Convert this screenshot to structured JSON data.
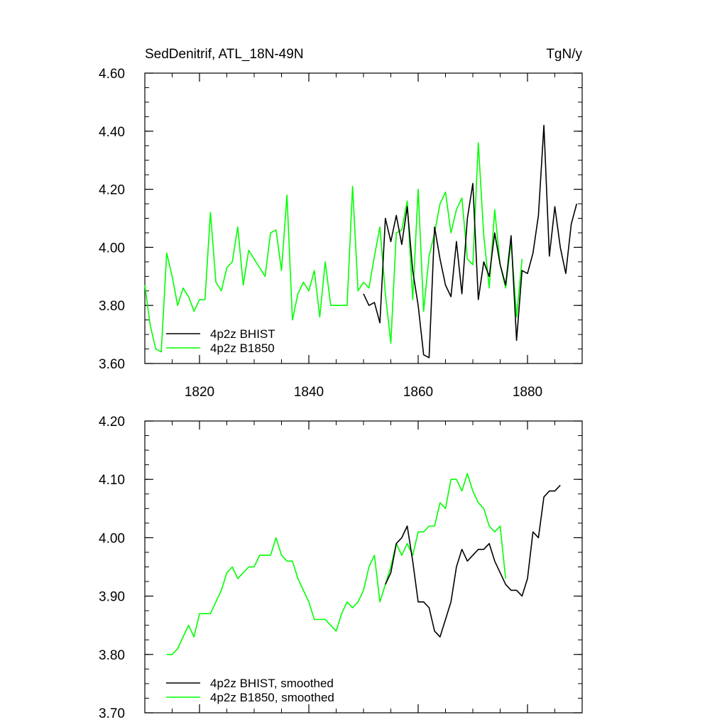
{
  "chart_data": [
    {
      "type": "line",
      "title": "SedDenitrif, ATL_18N-49N",
      "units": "TgN/y",
      "xlim": [
        1810,
        1890
      ],
      "ylim": [
        3.6,
        4.6
      ],
      "x_ticks": [
        1820,
        1840,
        1860,
        1880
      ],
      "x_tick_labels": [
        "1820",
        "1840",
        "1860",
        "1880"
      ],
      "y_ticks": [
        3.6,
        3.8,
        4.0,
        4.2,
        4.4,
        4.6
      ],
      "y_tick_labels": [
        "3.60",
        "3.80",
        "4.00",
        "4.20",
        "4.40",
        "4.60"
      ],
      "legend": "bottom-left",
      "grid": false,
      "series": [
        {
          "name": "4p2z BHIST",
          "color": "#000000",
          "x": [
            1850,
            1851,
            1852,
            1853,
            1854,
            1855,
            1856,
            1857,
            1858,
            1859,
            1860,
            1861,
            1862,
            1863,
            1864,
            1865,
            1866,
            1867,
            1868,
            1869,
            1870,
            1871,
            1872,
            1873,
            1874,
            1875,
            1876,
            1877,
            1878,
            1879,
            1880,
            1881,
            1882,
            1883,
            1884,
            1885,
            1886,
            1887,
            1888,
            1889
          ],
          "y": [
            3.84,
            3.8,
            3.81,
            3.74,
            4.1,
            4.02,
            4.11,
            4.01,
            4.14,
            3.92,
            3.8,
            3.63,
            3.62,
            4.07,
            3.96,
            3.87,
            3.83,
            4.02,
            3.84,
            4.1,
            4.22,
            3.82,
            3.95,
            3.9,
            4.05,
            3.94,
            3.87,
            4.04,
            3.68,
            3.92,
            3.91,
            3.98,
            4.11,
            4.42,
            3.97,
            4.14,
            4.0,
            3.91,
            4.08,
            4.15
          ]
        },
        {
          "name": "4p2z B1850",
          "color": "#00ff00",
          "x": [
            1810,
            1811,
            1812,
            1813,
            1814,
            1815,
            1816,
            1817,
            1818,
            1819,
            1820,
            1821,
            1822,
            1823,
            1824,
            1825,
            1826,
            1827,
            1828,
            1829,
            1830,
            1831,
            1832,
            1833,
            1834,
            1835,
            1836,
            1837,
            1838,
            1839,
            1840,
            1841,
            1842,
            1843,
            1844,
            1845,
            1846,
            1847,
            1848,
            1849,
            1850,
            1851,
            1852,
            1853,
            1854,
            1855,
            1856,
            1857,
            1858,
            1859,
            1860,
            1861,
            1862,
            1863,
            1864,
            1865,
            1866,
            1867,
            1868,
            1869,
            1870,
            1871,
            1872,
            1873,
            1874,
            1875,
            1876,
            1877,
            1878,
            1879
          ],
          "y": [
            3.87,
            3.73,
            3.65,
            3.64,
            3.98,
            3.9,
            3.8,
            3.86,
            3.83,
            3.78,
            3.82,
            3.82,
            4.12,
            3.88,
            3.85,
            3.93,
            3.95,
            4.07,
            3.87,
            3.99,
            3.96,
            3.93,
            3.9,
            4.05,
            4.06,
            3.92,
            4.18,
            3.75,
            3.84,
            3.88,
            3.85,
            3.92,
            3.76,
            3.95,
            3.8,
            3.8,
            3.8,
            3.8,
            4.21,
            3.85,
            3.88,
            3.86,
            3.97,
            4.07,
            3.84,
            3.67,
            4.05,
            4.06,
            4.16,
            3.82,
            4.2,
            3.78,
            3.97,
            4.05,
            4.15,
            4.19,
            4.05,
            4.13,
            4.17,
            3.96,
            3.94,
            4.36,
            4.04,
            3.86,
            4.13,
            3.94,
            3.86,
            4.02,
            3.76,
            3.96
          ]
        }
      ]
    },
    {
      "type": "line",
      "xlim": [
        1810,
        1890
      ],
      "ylim": [
        3.7,
        4.2
      ],
      "x_ticks": [
        1820,
        1840,
        1860,
        1880
      ],
      "y_ticks": [
        3.7,
        3.8,
        3.9,
        4.0,
        4.1,
        4.2
      ],
      "y_tick_labels": [
        "3.70",
        "3.80",
        "3.90",
        "4.00",
        "4.10",
        "4.20"
      ],
      "legend": "bottom-left",
      "grid": false,
      "series": [
        {
          "name": "4p2z BHIST, smoothed",
          "color": "#000000",
          "x": [
            1854,
            1855,
            1856,
            1857,
            1858,
            1859,
            1860,
            1861,
            1862,
            1863,
            1864,
            1865,
            1866,
            1867,
            1868,
            1869,
            1870,
            1871,
            1872,
            1873,
            1874,
            1875,
            1876,
            1877,
            1878,
            1879,
            1880,
            1881,
            1882,
            1883,
            1884,
            1885,
            1886
          ],
          "y": [
            3.92,
            3.94,
            3.99,
            4.0,
            4.02,
            3.96,
            3.89,
            3.89,
            3.88,
            3.84,
            3.83,
            3.86,
            3.89,
            3.95,
            3.98,
            3.96,
            3.97,
            3.98,
            3.98,
            3.99,
            3.96,
            3.94,
            3.92,
            3.91,
            3.91,
            3.9,
            3.93,
            4.01,
            4.0,
            4.07,
            4.08,
            4.08,
            4.09
          ]
        },
        {
          "name": "4p2z B1850, smoothed",
          "color": "#00ff00",
          "x": [
            1814,
            1815,
            1816,
            1817,
            1818,
            1819,
            1820,
            1821,
            1822,
            1823,
            1824,
            1825,
            1826,
            1827,
            1828,
            1829,
            1830,
            1831,
            1832,
            1833,
            1834,
            1835,
            1836,
            1837,
            1838,
            1839,
            1840,
            1841,
            1842,
            1843,
            1844,
            1845,
            1846,
            1847,
            1848,
            1849,
            1850,
            1851,
            1852,
            1853,
            1854,
            1855,
            1856,
            1857,
            1858,
            1859,
            1860,
            1861,
            1862,
            1863,
            1864,
            1865,
            1866,
            1867,
            1868,
            1869,
            1870,
            1871,
            1872,
            1873,
            1874,
            1875,
            1876
          ],
          "y": [
            3.8,
            3.8,
            3.81,
            3.83,
            3.85,
            3.83,
            3.87,
            3.87,
            3.87,
            3.89,
            3.91,
            3.94,
            3.95,
            3.93,
            3.94,
            3.95,
            3.95,
            3.97,
            3.97,
            3.97,
            4.0,
            3.97,
            3.96,
            3.96,
            3.93,
            3.91,
            3.89,
            3.86,
            3.86,
            3.86,
            3.85,
            3.84,
            3.87,
            3.89,
            3.88,
            3.89,
            3.91,
            3.95,
            3.97,
            3.89,
            3.92,
            3.95,
            3.99,
            3.97,
            3.99,
            3.97,
            4.01,
            4.01,
            4.02,
            4.02,
            4.06,
            4.05,
            4.1,
            4.1,
            4.08,
            4.11,
            4.08,
            4.06,
            4.05,
            4.02,
            4.01,
            4.02,
            3.93
          ]
        }
      ]
    }
  ]
}
